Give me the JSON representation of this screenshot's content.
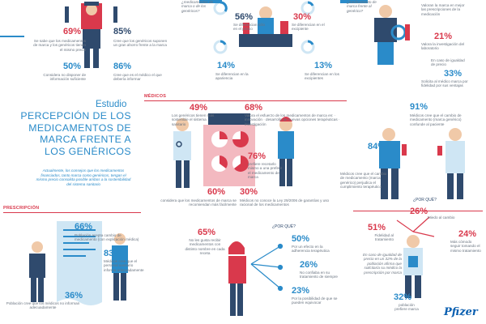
{
  "colors": {
    "red": "#d9394c",
    "blue": "#2a8bc9",
    "navy": "#2f4a6d",
    "pink": "#f3b9c0",
    "light_blue": "#cfe6f4"
  },
  "header_left": {
    "s69": {
      "pct": "69%",
      "text": "Se sabe que los medicamentos de marca y los genéricos tienen el mismo precio"
    },
    "s85": {
      "pct": "85%",
      "text": "Cree que los genéricos suponen un gran ahorro frente a la marca"
    },
    "s50": {
      "pct": "50%",
      "text": "Considera no disponer de información suficiente"
    },
    "s86": {
      "pct": "86%",
      "text": "Cree que es el médico el que debería informar"
    }
  },
  "header_center": {
    "top": "¿medicamentos de marca o de los genéricos?",
    "s56": {
      "pct": "56%",
      "text": "Se diferencian sólo en el precio"
    },
    "s30": {
      "pct": "30%",
      "text": "Se diferencian en el excipiente"
    },
    "s14": {
      "pct": "14%",
      "text": "Se diferencian en la apariencia"
    },
    "s13": {
      "pct": "13%",
      "text": "Se diferencian en los excipientes"
    }
  },
  "header_right": {
    "top": "¿medicamento de marca frente al genérico?",
    "r1": "Valoran la marca en mejor las prescripciones de la medicación",
    "s21": {
      "pct": "21%",
      "text": "Valora la investigación del laboratorio"
    },
    "r2": "En caso de igualdad de precio",
    "s33": {
      "pct": "33%",
      "text": "Solicita al médico marca por fidelidad por sus ventajas"
    }
  },
  "title": {
    "studio": "Estudio",
    "lines": [
      "PERCEPCIÓN DE LOS",
      "MEDICAMENTOS DE",
      "MARCA FRENTE A",
      "LOS GENÉRICOS"
    ],
    "intro": "Actualmente, los consejos que los medicamentos financiados, tanto marca como genéricos, tengan el mismo precio consolida posible ambos a la sostenibilidad del sistema sanitario"
  },
  "medicos": {
    "label": "MÉDICOS",
    "s49": {
      "pct": "49%",
      "text": "Los genéricos tienen más sostenible el sistema sanitario"
    },
    "s68": {
      "pct": "68%",
      "text": "Valora el esfuerzo de los medicamentos de marca en: · innovación · desarrollo de nuevas opciones terapéuticas · investigación"
    },
    "s76": {
      "pct": "76%",
      "text": "prefiere recetarlo mismo a una preferir el medicamento de marca"
    },
    "s60": {
      "pct": "60%",
      "text": "considera que los medicamentos de marca se recomiendan más fácilmente"
    },
    "s30": {
      "pct": "30%",
      "text": "Médicos no conoce la Ley 29/2006 de garantías y uso racional de los medicamentos"
    }
  },
  "right_mid": {
    "s91": {
      "pct": "91%",
      "text": "Médicos cree que el cambio de medicamento (marca genérico) confunde al paciente"
    },
    "s84": {
      "pct": "84%",
      "text": "Médicos cree que el cambio de medicamento (marca genérico) perjudica el cumplimiento terapéutico"
    }
  },
  "prescripcion": {
    "label": "PRESCRIPCIÓN",
    "s66": {
      "pct": "66%",
      "text": "Población acepta cambio de medicamento (con explicación médica)"
    },
    "s83": {
      "pct": "83%",
      "text": "Médicos cree que el personal sanitario informa adecuadamente"
    },
    "s36": {
      "pct": "36%",
      "text": "Población cree que los médicos no informan adecuadamente"
    }
  },
  "bottom_center": {
    "s65": {
      "pct": "65%",
      "text": "No les gusta recibir medicamentos con distinto nombre en cada receta"
    },
    "q": "¿POR QUÉ?",
    "s50": {
      "pct": "50%",
      "text": "Por un efecto en la adherencia terapéutica"
    },
    "s26": {
      "pct": "26%",
      "text": "No confiaba en su tratamiento de siempre"
    },
    "s23": {
      "pct": "23%",
      "text": "Por la posibilidad de que se pueden equivocar"
    }
  },
  "bottom_right": {
    "q": "¿POR QUÉ?",
    "s26": {
      "pct": "26%",
      "text": "Miedo al cambio"
    },
    "s51": {
      "pct": "51%",
      "text": "Fidelidad al tratamiento"
    },
    "s24": {
      "pct": "24%",
      "text": "Más cómodo seguir tomando el mismo tratamiento"
    },
    "note": "En caso de igualdad de precio en un 32% de la población afirma que solicitaría su médico la prescripción por marca",
    "s32": {
      "pct": "32%",
      "text": "población prefiere marca"
    }
  },
  "logo": "Pfizer"
}
